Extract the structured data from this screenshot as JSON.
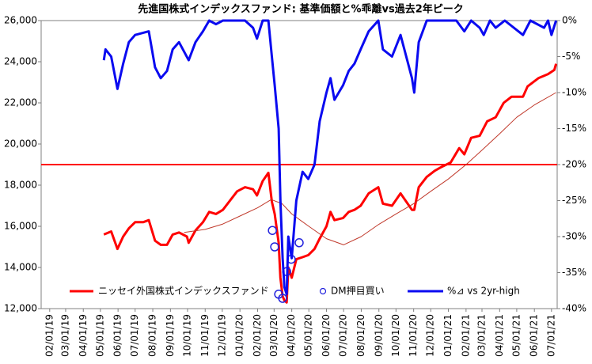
{
  "chart_data": {
    "type": "line",
    "title": "先進国株式インデックスファンド: 基準価額と%乖離vs過去2年ピーク",
    "xlim": [
      "01/17/19",
      "07/11/21"
    ],
    "xticks": [
      "02/01/19",
      "03/01/19",
      "04/01/19",
      "05/01/19",
      "06/01/19",
      "07/01/19",
      "08/01/19",
      "09/01/19",
      "10/01/19",
      "11/01/19",
      "12/01/19",
      "01/01/20",
      "02/01/20",
      "03/01/20",
      "04/01/20",
      "05/01/20",
      "06/01/20",
      "07/01/20",
      "08/01/20",
      "09/01/20",
      "10/01/20",
      "11/01/20",
      "12/01/20",
      "01/01/21",
      "02/01/21",
      "03/01/21",
      "04/01/21",
      "05/01/21",
      "06/01/21",
      "07/01/21"
    ],
    "ylim": [
      12000,
      26000
    ],
    "yticks": [
      {
        "value": 12000,
        "label": "12,000"
      },
      {
        "value": 14000,
        "label": "14,000"
      },
      {
        "value": 16000,
        "label": "16,000"
      },
      {
        "value": 18000,
        "label": "18,000"
      },
      {
        "value": 20000,
        "label": "20,000"
      },
      {
        "value": 22000,
        "label": "22,000"
      },
      {
        "value": 24000,
        "label": "24,000"
      },
      {
        "value": 26000,
        "label": "26,000"
      }
    ],
    "y2lim": [
      -40,
      0
    ],
    "y2ticks": [
      {
        "value": -40,
        "label": "-40%"
      },
      {
        "value": -35,
        "label": "-35%"
      },
      {
        "value": -30,
        "label": "-30%"
      },
      {
        "value": -25,
        "label": "-25%"
      },
      {
        "value": -20,
        "label": "-20%"
      },
      {
        "value": -15,
        "label": "-15%"
      },
      {
        "value": -10,
        "label": "-10%"
      },
      {
        "value": -5,
        "label": "-5%"
      },
      {
        "value": 0,
        "label": "0%"
      }
    ],
    "reference_line": {
      "value": 19000,
      "color": "#ff0000"
    },
    "series": [
      {
        "name": "ニッセイ外国株式インデックスファンド",
        "kind": "line",
        "color": "#ff0000",
        "width": 3,
        "x": [
          "05/07/19",
          "05/20/19",
          "05/31/19",
          "06/10/19",
          "06/20/19",
          "07/01/19",
          "07/15/19",
          "07/25/19",
          "08/05/19",
          "08/15/19",
          "08/26/19",
          "09/05/19",
          "09/16/19",
          "09/30/19",
          "10/03/19",
          "10/15/19",
          "10/28/19",
          "11/08/19",
          "11/20/19",
          "12/02/19",
          "12/16/19",
          "12/27/19",
          "01/10/20",
          "01/24/20",
          "01/31/20",
          "02/10/20",
          "02/20/20",
          "02/26/20",
          "03/02/20",
          "03/09/20",
          "03/12/20",
          "03/16/20",
          "03/19/20",
          "03/23/20",
          "03/26/20",
          "04/01/20",
          "04/09/20",
          "04/20/20",
          "04/30/20",
          "05/11/20",
          "05/20/20",
          "06/01/20",
          "06/08/20",
          "06/15/20",
          "06/30/20",
          "07/10/20",
          "07/20/20",
          "07/31/20",
          "08/14/20",
          "08/31/20",
          "09/08/20",
          "09/24/20",
          "10/09/20",
          "10/29/20",
          "11/02/20",
          "11/10/20",
          "11/24/20",
          "12/08/20",
          "12/21/20",
          "01/05/21",
          "01/20/21",
          "01/29/21",
          "02/10/21",
          "02/25/21",
          "03/10/21",
          "03/25/21",
          "04/08/21",
          "04/22/21",
          "05/12/21",
          "05/20/21",
          "06/08/21",
          "06/25/21",
          "07/06/21",
          "07/09/21"
        ],
        "values": [
          15600,
          15750,
          14900,
          15500,
          15900,
          16200,
          16200,
          16300,
          15300,
          15100,
          15100,
          15600,
          15700,
          15500,
          15200,
          15800,
          16200,
          16700,
          16600,
          16800,
          17300,
          17700,
          17900,
          17800,
          17500,
          18200,
          18600,
          17200,
          16600,
          15200,
          13500,
          12600,
          12400,
          12300,
          14000,
          13500,
          14400,
          14500,
          14600,
          14900,
          15400,
          16000,
          16700,
          16300,
          16400,
          16700,
          16800,
          17000,
          17600,
          17900,
          17100,
          17000,
          17600,
          16800,
          16800,
          17900,
          18400,
          18700,
          18900,
          19100,
          19800,
          19500,
          20300,
          20400,
          21100,
          21300,
          22000,
          22300,
          22300,
          22800,
          23200,
          23400,
          23600,
          23900
        ]
      },
      {
        "kind": "line",
        "color": "#c0392b",
        "width": 1,
        "x": [
          "09/25/19",
          "11/01/19",
          "12/01/19",
          "01/01/20",
          "02/01/20",
          "02/25/20",
          "03/15/20",
          "04/01/20",
          "05/01/20",
          "06/01/20",
          "07/01/20",
          "08/01/20",
          "09/01/20",
          "10/01/20",
          "11/01/20",
          "12/01/20",
          "01/01/21",
          "02/01/21",
          "03/01/21",
          "04/01/21",
          "05/01/21",
          "06/01/21",
          "07/09/21"
        ],
        "values": [
          15700,
          15850,
          16100,
          16500,
          16900,
          17300,
          17100,
          16600,
          16000,
          15400,
          15100,
          15500,
          16100,
          16600,
          17100,
          17700,
          18300,
          19000,
          19700,
          20500,
          21300,
          21900,
          22500
        ]
      },
      {
        "name": "DM押目買い",
        "kind": "scatter",
        "color": "#2222dd",
        "x": [
          "02/27/20",
          "03/02/20",
          "03/09/20",
          "03/16/20",
          "03/23/20",
          "03/31/20",
          "04/14/20"
        ],
        "values": [
          15800,
          15000,
          12700,
          12500,
          13800,
          14400,
          15200
        ]
      },
      {
        "name": "%⊿ vs 2yr-high",
        "kind": "line",
        "color": "#0a0af0",
        "width": 3,
        "axis": "y2",
        "x": [
          "05/07/19",
          "05/10/19",
          "05/20/19",
          "05/31/19",
          "06/10/19",
          "06/20/19",
          "07/01/19",
          "07/25/19",
          "08/05/19",
          "08/15/19",
          "08/26/19",
          "09/05/19",
          "09/16/19",
          "10/03/19",
          "10/15/19",
          "10/28/19",
          "11/08/19",
          "11/20/19",
          "12/02/19",
          "12/16/19",
          "01/10/20",
          "01/24/20",
          "01/31/20",
          "02/10/20",
          "02/20/20",
          "02/26/20",
          "03/02/20",
          "03/09/20",
          "03/12/20",
          "03/16/20",
          "03/19/20",
          "03/23/20",
          "03/26/20",
          "04/01/20",
          "04/09/20",
          "04/20/20",
          "04/30/20",
          "05/11/20",
          "05/20/20",
          "06/01/20",
          "06/08/20",
          "06/15/20",
          "06/30/20",
          "07/10/20",
          "07/20/20",
          "07/31/20",
          "08/14/20",
          "08/31/20",
          "09/08/20",
          "09/24/20",
          "10/09/20",
          "10/29/20",
          "11/02/20",
          "11/10/20",
          "11/24/20",
          "12/08/20",
          "01/15/21",
          "01/29/21",
          "02/10/21",
          "02/25/21",
          "03/04/21",
          "03/15/21",
          "03/25/21",
          "04/10/21",
          "05/12/21",
          "05/25/21",
          "06/18/21",
          "06/25/21",
          "07/01/21",
          "07/09/21"
        ],
        "values": [
          -5.5,
          -4,
          -5,
          -9.5,
          -6,
          -3,
          -2,
          -1.5,
          -6.5,
          -8,
          -7,
          -4,
          -3,
          -5.5,
          -3,
          -1.5,
          0,
          -0.5,
          0,
          0,
          0,
          -1,
          -2.5,
          0,
          0,
          -5,
          -9,
          -15,
          -25,
          -33,
          -37,
          -38,
          -30,
          -33,
          -25,
          -21,
          -22,
          -20,
          -14,
          -10,
          -8,
          -11,
          -9,
          -7,
          -6,
          -4,
          -1.5,
          0,
          -4,
          -5,
          -2,
          -8,
          -10,
          -3,
          0,
          0,
          0,
          -1.5,
          0,
          -1,
          -2,
          0,
          -1,
          0,
          -2,
          0,
          -1,
          0,
          -2,
          0
        ]
      }
    ]
  }
}
